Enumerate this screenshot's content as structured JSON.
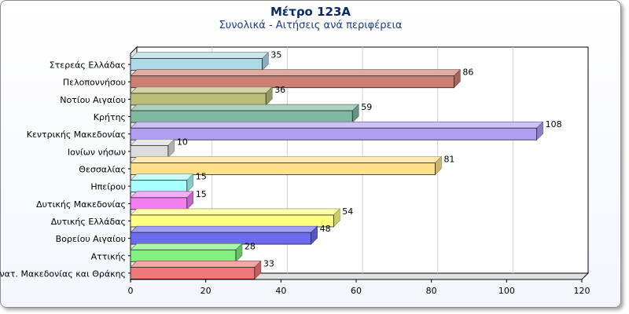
{
  "chart_data": {
    "type": "bar",
    "orientation": "horizontal",
    "title": "Μέτρο 123Α",
    "subtitle": "Συνολικά - Αιτήσεις ανά περιφέρεια",
    "categories": [
      "Στερεάς Ελλάδας",
      "Πελοποννήσου",
      "Νοτίου Αιγαίου",
      "Κρήτης",
      "Κεντρικής Μακεδονίας",
      "Ιονίων νήσων",
      "Θεσσαλίας",
      "Ηπείρου",
      "Δυτικής Μακεδονίας",
      "Δυτικής Ελλάδας",
      "Βορείου Αιγαίου",
      "Αττικής",
      "Ανατ. Μακεδονίας και Θράκης"
    ],
    "values": [
      35,
      86,
      36,
      59,
      108,
      10,
      81,
      15,
      15,
      54,
      48,
      28,
      33
    ],
    "colors": [
      "#add8e6",
      "#cd7f73",
      "#bdbd7a",
      "#7fb89f",
      "#b09ef0",
      "#dcdcdc",
      "#ffe08a",
      "#a8ffff",
      "#f27ff2",
      "#ffff80",
      "#6b6bf0",
      "#80f080",
      "#f07878"
    ],
    "xlim": [
      0,
      120
    ],
    "xticks": [
      "0",
      "20",
      "40",
      "60",
      "80",
      "100",
      "120"
    ],
    "xlabel": "",
    "ylabel": "",
    "grid": "vertical"
  }
}
